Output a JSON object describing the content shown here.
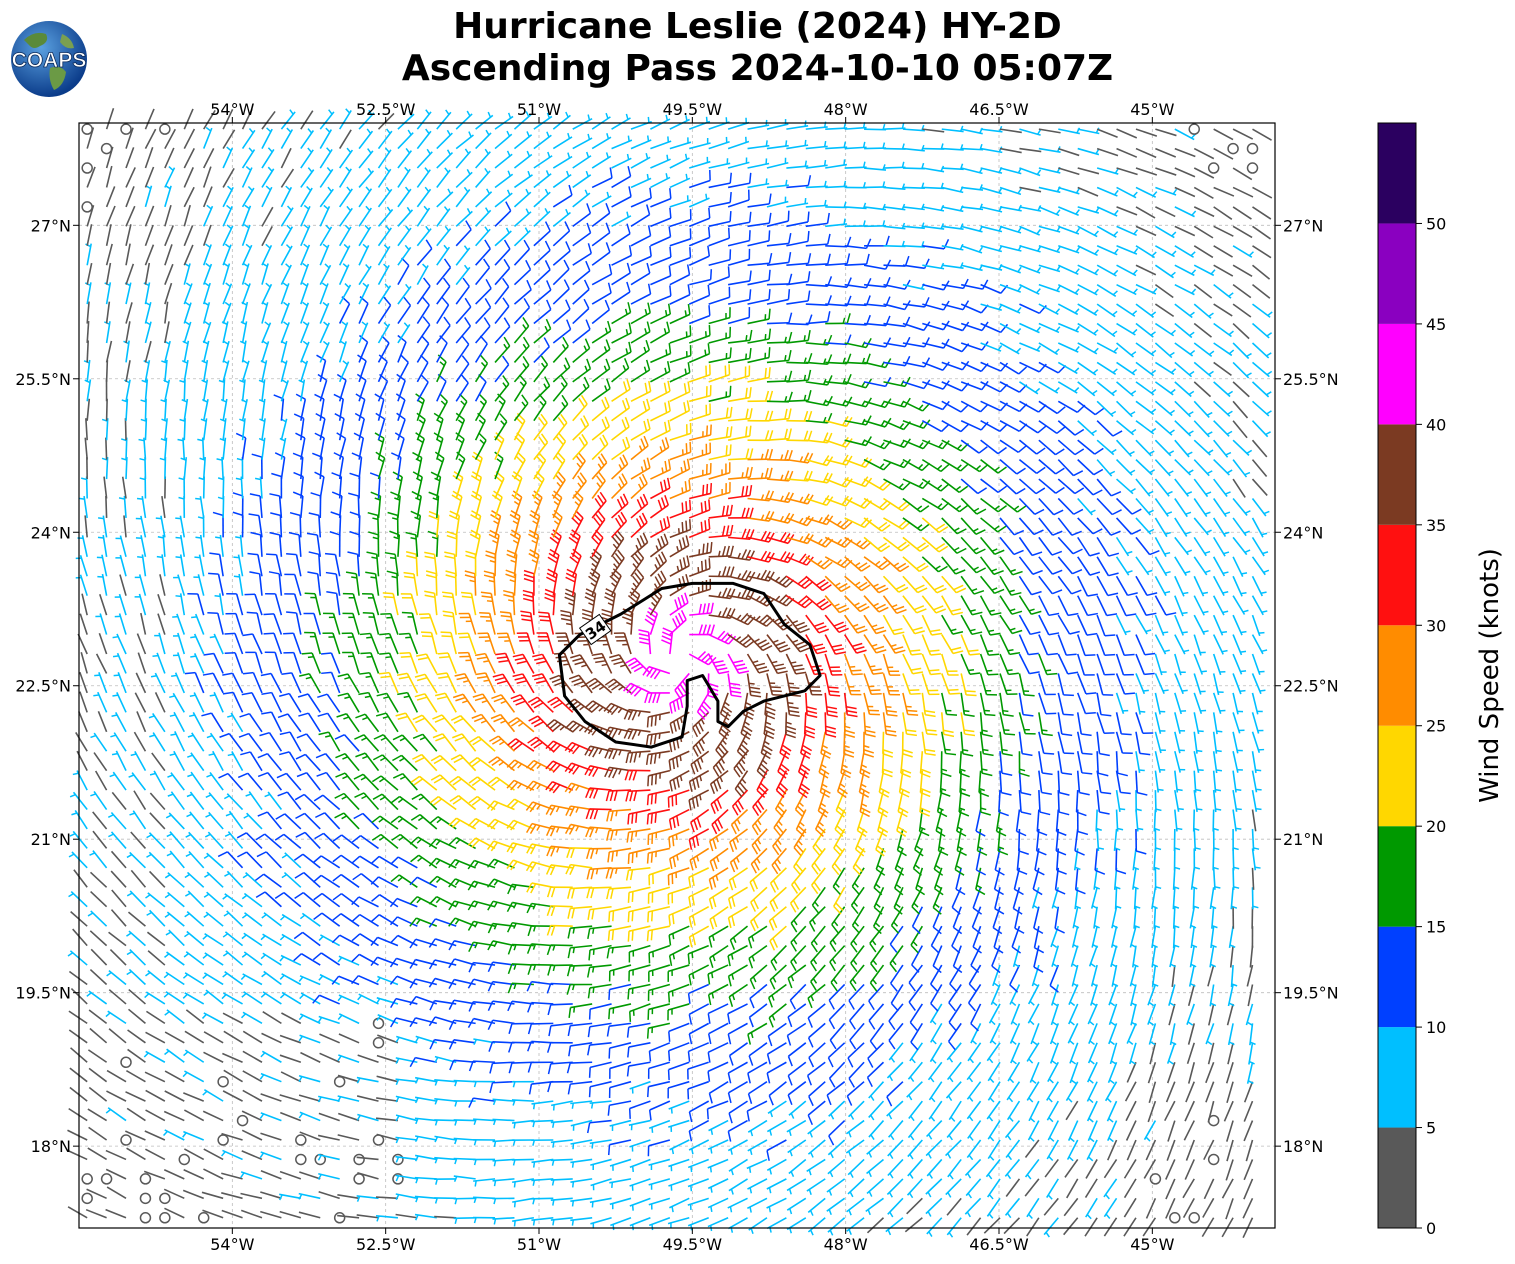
{
  "title": {
    "line1": "Hurricane Leslie (2024) HY-2D",
    "line2": "Ascending Pass 2024-10-10 05:07Z"
  },
  "logo": {
    "text": "COAPS",
    "icon": "globe-icon"
  },
  "map": {
    "lon_range": [
      -55.5,
      -43.8
    ],
    "lat_range": [
      17.2,
      28.0
    ],
    "lon_ticks": [
      {
        "value": -54.0,
        "label": "54°W"
      },
      {
        "value": -52.5,
        "label": "52.5°W"
      },
      {
        "value": -51.0,
        "label": "51°W"
      },
      {
        "value": -49.5,
        "label": "49.5°W"
      },
      {
        "value": -48.0,
        "label": "48°W"
      },
      {
        "value": -46.5,
        "label": "46.5°W"
      },
      {
        "value": -45.0,
        "label": "45°W"
      }
    ],
    "lat_ticks": [
      {
        "value": 27.0,
        "label": "27°N"
      },
      {
        "value": 25.5,
        "label": "25.5°N"
      },
      {
        "value": 24.0,
        "label": "24°N"
      },
      {
        "value": 22.5,
        "label": "22.5°N"
      },
      {
        "value": 21.0,
        "label": "21°N"
      },
      {
        "value": 19.5,
        "label": "19.5°N"
      },
      {
        "value": 18.0,
        "label": "18°N"
      }
    ],
    "gridlines": true,
    "storm_center": {
      "lon": -49.6,
      "lat": 22.75
    },
    "contour": {
      "label": "34",
      "units": "knots",
      "points": [
        [
          -50.2,
          23.2
        ],
        [
          -49.8,
          23.45
        ],
        [
          -49.5,
          23.5
        ],
        [
          -49.1,
          23.5
        ],
        [
          -48.8,
          23.4
        ],
        [
          -48.6,
          23.1
        ],
        [
          -48.35,
          22.9
        ],
        [
          -48.25,
          22.6
        ],
        [
          -48.4,
          22.45
        ],
        [
          -48.8,
          22.35
        ],
        [
          -49.0,
          22.25
        ],
        [
          -49.15,
          22.1
        ],
        [
          -49.25,
          22.15
        ],
        [
          -49.25,
          22.35
        ],
        [
          -49.4,
          22.6
        ],
        [
          -49.55,
          22.55
        ],
        [
          -49.55,
          22.3
        ],
        [
          -49.6,
          22.0
        ],
        [
          -49.9,
          21.9
        ],
        [
          -50.25,
          21.95
        ],
        [
          -50.55,
          22.15
        ],
        [
          -50.75,
          22.4
        ],
        [
          -50.8,
          22.8
        ],
        [
          -50.6,
          23.0
        ]
      ]
    }
  },
  "colorbar": {
    "title": "Wind Speed (knots)",
    "boundaries": [
      0,
      5,
      10,
      15,
      20,
      25,
      30,
      35,
      40,
      45,
      50,
      55
    ],
    "tick_labels": [
      "0",
      "5",
      "10",
      "15",
      "20",
      "25",
      "30",
      "35",
      "40",
      "45",
      "50"
    ],
    "colors": [
      "#595959",
      "#00bfff",
      "#0040ff",
      "#009900",
      "#ffd700",
      "#ff8c00",
      "#ff1010",
      "#7b3a22",
      "#ff00ff",
      "#8a00c0",
      "#2b0060"
    ]
  }
}
